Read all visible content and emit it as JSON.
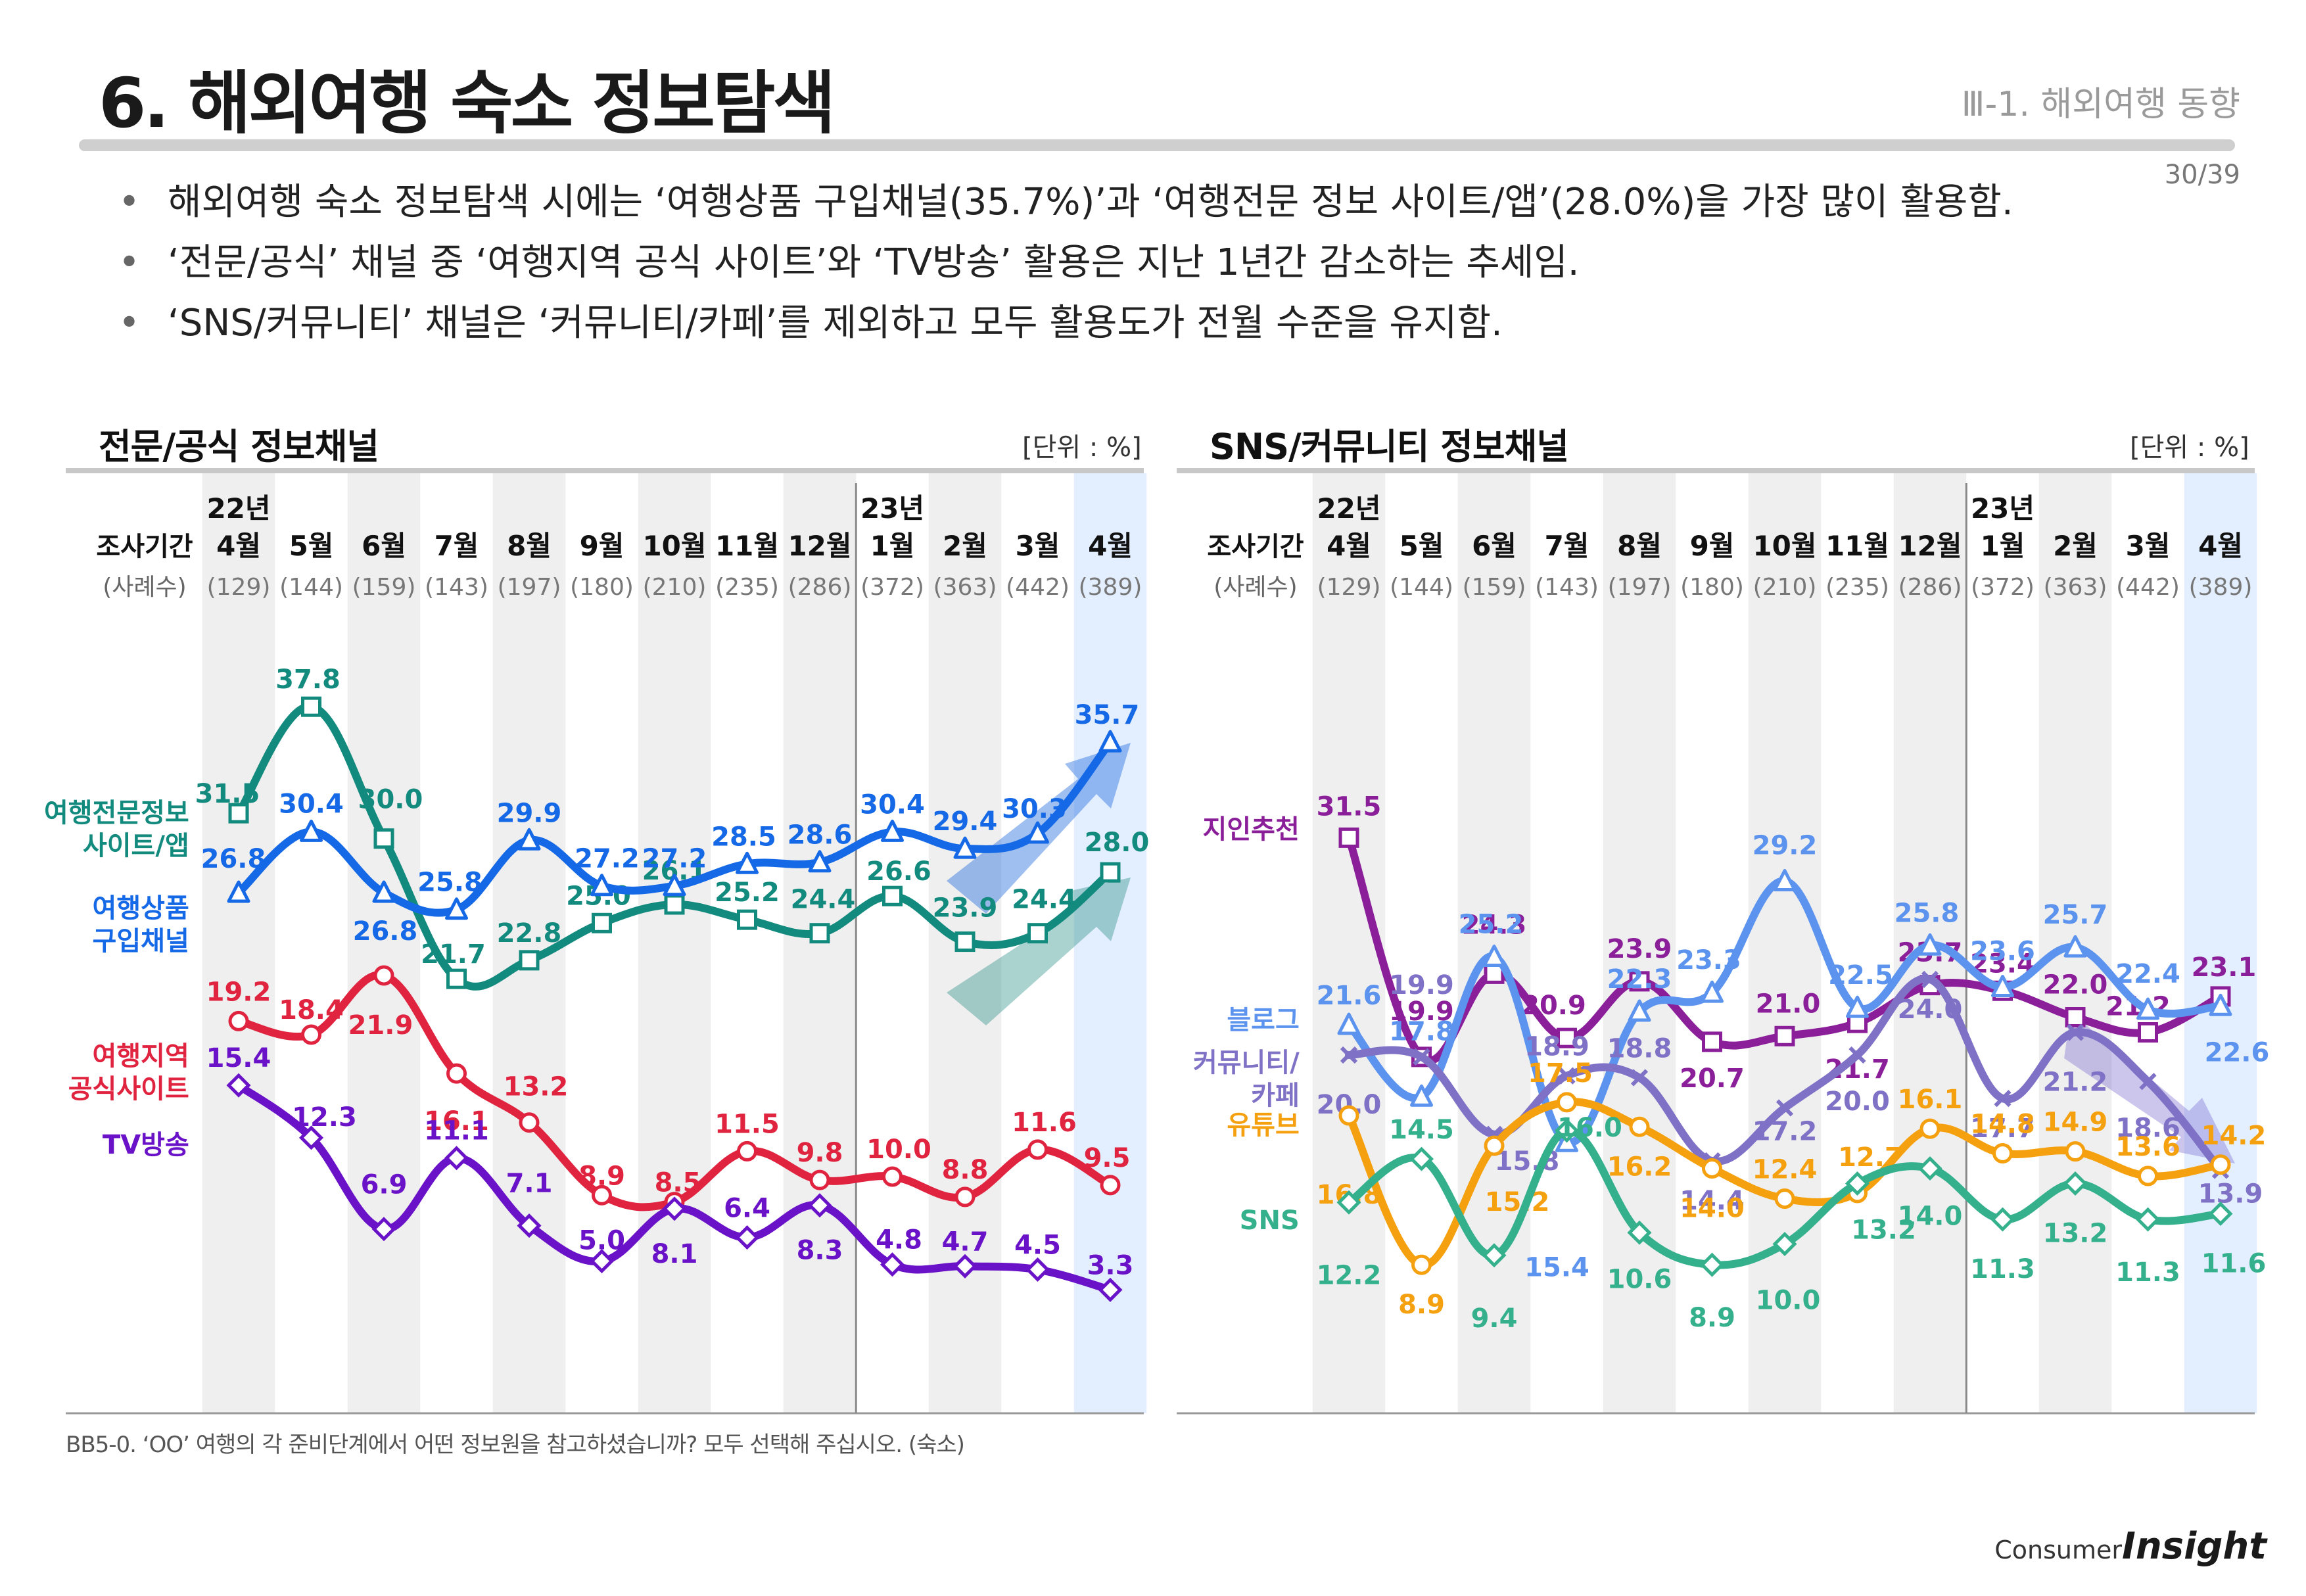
{
  "header": {
    "title": "6. 해외여행 숙소 정보탐색",
    "section": "Ⅲ-1. 해외여행 동향",
    "page": "30/39"
  },
  "bullets": [
    "해외여행 숙소 정보탐색 시에는 ‘여행상품 구입채널(35.7%)’과 ‘여행전문 정보 사이트/앱’(28.0%)을 가장 많이 활용함.",
    "‘전문/공식’ 채널 중 ‘여행지역 공식 사이트’와 ‘TV방송’ 활용은 지난 1년간 감소하는 추세임.",
    "‘SNS/커뮤니티’ 채널은 ‘커뮤니티/카페’를 제외하고 모두 활용도가 전월 수준을 유지함."
  ],
  "footnote": "BB5-0. ‘OO’ 여행의 각 준비단계에서 어떤 정보원을 참고하셨습니까? 모두 선택해 주십시오. (숙소)",
  "logo": {
    "prefix": "Consumer",
    "main": "Insight"
  },
  "common": {
    "period_label": "조사기간",
    "sample_label": "(사례수)",
    "year_labels": {
      "0": "22년",
      "8": "23년"
    },
    "months": [
      "4월",
      "5월",
      "6월",
      "7월",
      "8월",
      "9월",
      "10월",
      "11월",
      "12월",
      "1월",
      "2월",
      "3월",
      "4월"
    ],
    "samples": [
      "(129)",
      "(144)",
      "(159)",
      "(143)",
      "(197)",
      "(180)",
      "(210)",
      "(235)",
      "(286)",
      "(372)",
      "(363)",
      "(442)",
      "(389)"
    ]
  },
  "chart_data": [
    {
      "type": "line",
      "title": "전문/공식 정보채널",
      "unit": "[단위 : %]",
      "categories": [
        "22년 4월",
        "5월",
        "6월",
        "7월",
        "8월",
        "9월",
        "10월",
        "11월",
        "12월",
        "23년 1월",
        "2월",
        "3월",
        "4월"
      ],
      "series": [
        {
          "name": "여행전문정보 사이트/앱",
          "legend": [
            "여행전문정보",
            "사이트/앱"
          ],
          "color": "#138a7e",
          "marker": "square",
          "values": [
            31.5,
            37.8,
            30.0,
            21.7,
            22.8,
            25.0,
            26.1,
            25.2,
            24.4,
            26.6,
            23.9,
            24.4,
            28.0
          ],
          "labels": [
            "31.5",
            "37.8",
            "30.0",
            "21.7",
            "22.8",
            "25.0",
            "26.1",
            "25.2",
            "24.4",
            "26.6",
            "23.9",
            "24.4",
            "28.0"
          ]
        },
        {
          "name": "여행상품 구입채널",
          "legend": [
            "여행상품",
            "구입채널"
          ],
          "color": "#1569e6",
          "marker": "triangle",
          "values": [
            26.8,
            30.4,
            26.8,
            25.8,
            29.9,
            27.2,
            27.2,
            28.5,
            28.6,
            30.4,
            29.4,
            30.3,
            35.7
          ],
          "labels": [
            "26.8",
            "30.4",
            "26.8",
            "25.8",
            "29.9",
            "27.2",
            "27.2",
            "28.5",
            "28.6",
            "30.4",
            "29.4",
            "30.3",
            "35.7"
          ]
        },
        {
          "name": "여행지역 공식사이트",
          "legend": [
            "여행지역",
            "공식사이트"
          ],
          "color": "#e0233f",
          "marker": "circle",
          "values": [
            19.2,
            18.4,
            21.9,
            16.1,
            13.2,
            8.9,
            8.5,
            11.5,
            9.8,
            10.0,
            8.8,
            11.6,
            9.5
          ],
          "labels": [
            "19.2",
            "18.4",
            "21.9",
            "16.1",
            "13.2",
            "8.9",
            "8.5",
            "11.5",
            "9.8",
            "10.0",
            "8.8",
            "11.6",
            "9.5"
          ]
        },
        {
          "name": "TV방송",
          "legend": [
            "TV방송"
          ],
          "color": "#6a12c8",
          "marker": "diamond",
          "values": [
            15.4,
            12.3,
            6.9,
            11.1,
            7.1,
            5.0,
            8.1,
            6.4,
            8.3,
            4.8,
            4.7,
            4.5,
            3.3
          ],
          "labels": [
            "15.4",
            "12.3",
            "6.9",
            "11.1",
            "7.1",
            "5.0",
            "8.1",
            "6.4",
            "8.3",
            "4.8",
            "4.7",
            "4.5",
            "3.3"
          ]
        }
      ]
    },
    {
      "type": "line",
      "title": "SNS/커뮤니티 정보채널",
      "unit": "[단위 : %]",
      "categories": [
        "22년 4월",
        "5월",
        "6월",
        "7월",
        "8월",
        "9월",
        "10월",
        "11월",
        "12월",
        "23년 1월",
        "2월",
        "3월",
        "4월"
      ],
      "series": [
        {
          "name": "지인추천",
          "legend": [
            "지인추천"
          ],
          "color": "#8b1f9a",
          "marker": "square",
          "values": [
            31.5,
            19.9,
            24.3,
            20.9,
            23.9,
            20.7,
            21.0,
            21.7,
            23.7,
            23.4,
            22.0,
            21.2,
            23.1
          ],
          "labels": [
            "31.5",
            "19.9",
            "24.3",
            "20.9",
            "23.9",
            "20.7",
            "21.0",
            "21.7",
            "23.7",
            "23.4",
            "22.0",
            "21.2",
            "23.1"
          ]
        },
        {
          "name": "블로그",
          "legend": [
            "블로그"
          ],
          "color": "#5b93ee",
          "marker": "triangle",
          "values": [
            21.6,
            17.8,
            25.2,
            15.4,
            22.3,
            23.3,
            29.2,
            22.5,
            25.8,
            23.6,
            25.7,
            22.4,
            22.6
          ],
          "labels": [
            "21.6",
            "17.8",
            "25.2",
            "15.4",
            "22.3",
            "23.3",
            "29.2",
            "22.5",
            "25.8",
            "23.6",
            "25.7",
            "22.4",
            "22.6"
          ]
        },
        {
          "name": "커뮤니티/카페",
          "legend": [
            "커뮤니티/",
            "카페"
          ],
          "color": "#7f72c6",
          "marker": "x",
          "values": [
            20.0,
            19.9,
            15.8,
            18.9,
            18.8,
            14.4,
            17.2,
            20.0,
            24.0,
            17.7,
            21.2,
            18.6,
            13.9
          ],
          "labels": [
            "20.0",
            "19.9",
            "15.8",
            "18.9",
            "18.8",
            "14.4",
            "17.2",
            "20.0",
            "24.0",
            "17.7",
            "21.2",
            "18.6",
            "13.9"
          ]
        },
        {
          "name": "유튜브",
          "legend": [
            "유튜브"
          ],
          "color": "#f5a00e",
          "marker": "circle",
          "values": [
            16.8,
            8.9,
            15.2,
            17.5,
            16.2,
            14.0,
            12.4,
            12.7,
            16.1,
            14.8,
            14.9,
            13.6,
            14.2
          ],
          "labels": [
            "16.8",
            "8.9",
            "15.2",
            "17.5",
            "16.2",
            "14.0",
            "12.4",
            "12.7",
            "16.1",
            "14.8",
            "14.9",
            "13.6",
            "14.2"
          ]
        },
        {
          "name": "SNS",
          "legend": [
            "SNS"
          ],
          "color": "#35b08c",
          "marker": "diamond",
          "values": [
            12.2,
            14.5,
            9.4,
            16.0,
            10.6,
            8.9,
            10.0,
            13.2,
            14.0,
            11.3,
            13.2,
            11.3,
            11.6
          ],
          "labels": [
            "12.2",
            "14.5",
            "9.4",
            "16.0",
            "10.6",
            "8.9",
            "10.0",
            "13.2",
            "14.0",
            "11.3",
            "13.2",
            "11.3",
            "11.6"
          ]
        }
      ]
    }
  ]
}
